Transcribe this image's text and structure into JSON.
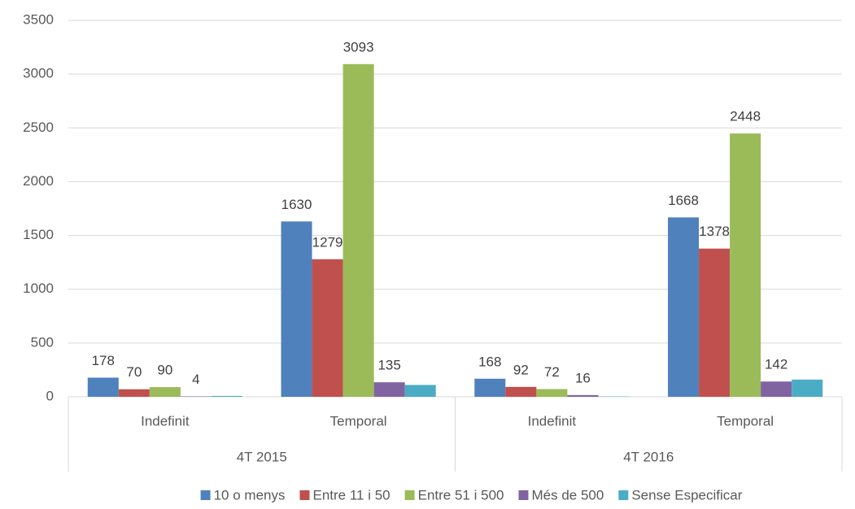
{
  "chart_data": {
    "type": "bar",
    "categories": [
      "Indefinit",
      "Temporal",
      "Indefinit",
      "Temporal"
    ],
    "groups": [
      "4T 2015",
      "4T 2016"
    ],
    "series": [
      {
        "name": "10 o menys",
        "color": "#4f81bd",
        "values": [
          178,
          1630,
          168,
          1668
        ]
      },
      {
        "name": "Entre 11 i 50",
        "color": "#c0504d",
        "values": [
          70,
          1279,
          92,
          1378
        ]
      },
      {
        "name": "Entre 51 i 500",
        "color": "#9bbb59",
        "values": [
          90,
          3093,
          72,
          2448
        ]
      },
      {
        "name": "Més de 500",
        "color": "#8064a2",
        "values": [
          4,
          135,
          16,
          142
        ]
      },
      {
        "name": "Sense Especificar",
        "color": "#4bacc6",
        "values": [
          8,
          110,
          3,
          160
        ],
        "show_labels": false
      }
    ],
    "ylim": [
      0,
      3500
    ],
    "yticks": [
      0,
      500,
      1000,
      1500,
      2000,
      2500,
      3000,
      3500
    ],
    "grid": true,
    "legend": "bottom"
  }
}
